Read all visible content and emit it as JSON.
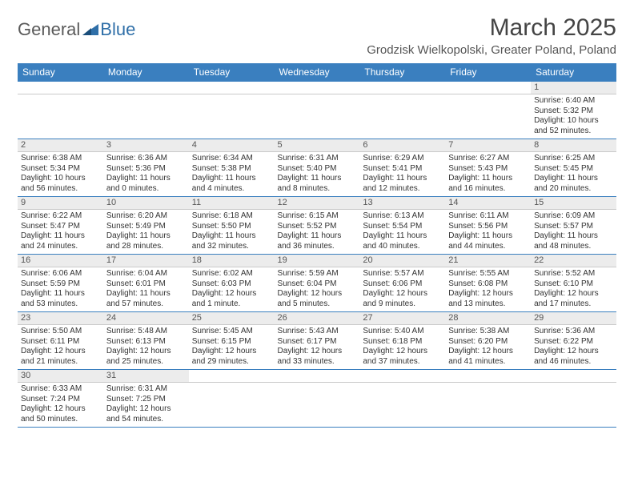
{
  "logo": {
    "text1": "General",
    "text2": "Blue"
  },
  "title": "March 2025",
  "subtitle": "Grodzisk Wielkopolski, Greater Poland, Poland",
  "colors": {
    "header_bg": "#3a7fbf",
    "header_text": "#ffffff",
    "daynum_bg": "#ececec",
    "rule": "#3a7fbf",
    "body_text": "#333333",
    "title_text": "#444444"
  },
  "weekdays": [
    "Sunday",
    "Monday",
    "Tuesday",
    "Wednesday",
    "Thursday",
    "Friday",
    "Saturday"
  ],
  "weeks": [
    [
      null,
      null,
      null,
      null,
      null,
      null,
      {
        "n": "1",
        "sr": "Sunrise: 6:40 AM",
        "ss": "Sunset: 5:32 PM",
        "d1": "Daylight: 10 hours",
        "d2": "and 52 minutes."
      }
    ],
    [
      {
        "n": "2",
        "sr": "Sunrise: 6:38 AM",
        "ss": "Sunset: 5:34 PM",
        "d1": "Daylight: 10 hours",
        "d2": "and 56 minutes."
      },
      {
        "n": "3",
        "sr": "Sunrise: 6:36 AM",
        "ss": "Sunset: 5:36 PM",
        "d1": "Daylight: 11 hours",
        "d2": "and 0 minutes."
      },
      {
        "n": "4",
        "sr": "Sunrise: 6:34 AM",
        "ss": "Sunset: 5:38 PM",
        "d1": "Daylight: 11 hours",
        "d2": "and 4 minutes."
      },
      {
        "n": "5",
        "sr": "Sunrise: 6:31 AM",
        "ss": "Sunset: 5:40 PM",
        "d1": "Daylight: 11 hours",
        "d2": "and 8 minutes."
      },
      {
        "n": "6",
        "sr": "Sunrise: 6:29 AM",
        "ss": "Sunset: 5:41 PM",
        "d1": "Daylight: 11 hours",
        "d2": "and 12 minutes."
      },
      {
        "n": "7",
        "sr": "Sunrise: 6:27 AM",
        "ss": "Sunset: 5:43 PM",
        "d1": "Daylight: 11 hours",
        "d2": "and 16 minutes."
      },
      {
        "n": "8",
        "sr": "Sunrise: 6:25 AM",
        "ss": "Sunset: 5:45 PM",
        "d1": "Daylight: 11 hours",
        "d2": "and 20 minutes."
      }
    ],
    [
      {
        "n": "9",
        "sr": "Sunrise: 6:22 AM",
        "ss": "Sunset: 5:47 PM",
        "d1": "Daylight: 11 hours",
        "d2": "and 24 minutes."
      },
      {
        "n": "10",
        "sr": "Sunrise: 6:20 AM",
        "ss": "Sunset: 5:49 PM",
        "d1": "Daylight: 11 hours",
        "d2": "and 28 minutes."
      },
      {
        "n": "11",
        "sr": "Sunrise: 6:18 AM",
        "ss": "Sunset: 5:50 PM",
        "d1": "Daylight: 11 hours",
        "d2": "and 32 minutes."
      },
      {
        "n": "12",
        "sr": "Sunrise: 6:15 AM",
        "ss": "Sunset: 5:52 PM",
        "d1": "Daylight: 11 hours",
        "d2": "and 36 minutes."
      },
      {
        "n": "13",
        "sr": "Sunrise: 6:13 AM",
        "ss": "Sunset: 5:54 PM",
        "d1": "Daylight: 11 hours",
        "d2": "and 40 minutes."
      },
      {
        "n": "14",
        "sr": "Sunrise: 6:11 AM",
        "ss": "Sunset: 5:56 PM",
        "d1": "Daylight: 11 hours",
        "d2": "and 44 minutes."
      },
      {
        "n": "15",
        "sr": "Sunrise: 6:09 AM",
        "ss": "Sunset: 5:57 PM",
        "d1": "Daylight: 11 hours",
        "d2": "and 48 minutes."
      }
    ],
    [
      {
        "n": "16",
        "sr": "Sunrise: 6:06 AM",
        "ss": "Sunset: 5:59 PM",
        "d1": "Daylight: 11 hours",
        "d2": "and 53 minutes."
      },
      {
        "n": "17",
        "sr": "Sunrise: 6:04 AM",
        "ss": "Sunset: 6:01 PM",
        "d1": "Daylight: 11 hours",
        "d2": "and 57 minutes."
      },
      {
        "n": "18",
        "sr": "Sunrise: 6:02 AM",
        "ss": "Sunset: 6:03 PM",
        "d1": "Daylight: 12 hours",
        "d2": "and 1 minute."
      },
      {
        "n": "19",
        "sr": "Sunrise: 5:59 AM",
        "ss": "Sunset: 6:04 PM",
        "d1": "Daylight: 12 hours",
        "d2": "and 5 minutes."
      },
      {
        "n": "20",
        "sr": "Sunrise: 5:57 AM",
        "ss": "Sunset: 6:06 PM",
        "d1": "Daylight: 12 hours",
        "d2": "and 9 minutes."
      },
      {
        "n": "21",
        "sr": "Sunrise: 5:55 AM",
        "ss": "Sunset: 6:08 PM",
        "d1": "Daylight: 12 hours",
        "d2": "and 13 minutes."
      },
      {
        "n": "22",
        "sr": "Sunrise: 5:52 AM",
        "ss": "Sunset: 6:10 PM",
        "d1": "Daylight: 12 hours",
        "d2": "and 17 minutes."
      }
    ],
    [
      {
        "n": "23",
        "sr": "Sunrise: 5:50 AM",
        "ss": "Sunset: 6:11 PM",
        "d1": "Daylight: 12 hours",
        "d2": "and 21 minutes."
      },
      {
        "n": "24",
        "sr": "Sunrise: 5:48 AM",
        "ss": "Sunset: 6:13 PM",
        "d1": "Daylight: 12 hours",
        "d2": "and 25 minutes."
      },
      {
        "n": "25",
        "sr": "Sunrise: 5:45 AM",
        "ss": "Sunset: 6:15 PM",
        "d1": "Daylight: 12 hours",
        "d2": "and 29 minutes."
      },
      {
        "n": "26",
        "sr": "Sunrise: 5:43 AM",
        "ss": "Sunset: 6:17 PM",
        "d1": "Daylight: 12 hours",
        "d2": "and 33 minutes."
      },
      {
        "n": "27",
        "sr": "Sunrise: 5:40 AM",
        "ss": "Sunset: 6:18 PM",
        "d1": "Daylight: 12 hours",
        "d2": "and 37 minutes."
      },
      {
        "n": "28",
        "sr": "Sunrise: 5:38 AM",
        "ss": "Sunset: 6:20 PM",
        "d1": "Daylight: 12 hours",
        "d2": "and 41 minutes."
      },
      {
        "n": "29",
        "sr": "Sunrise: 5:36 AM",
        "ss": "Sunset: 6:22 PM",
        "d1": "Daylight: 12 hours",
        "d2": "and 46 minutes."
      }
    ],
    [
      {
        "n": "30",
        "sr": "Sunrise: 6:33 AM",
        "ss": "Sunset: 7:24 PM",
        "d1": "Daylight: 12 hours",
        "d2": "and 50 minutes."
      },
      {
        "n": "31",
        "sr": "Sunrise: 6:31 AM",
        "ss": "Sunset: 7:25 PM",
        "d1": "Daylight: 12 hours",
        "d2": "and 54 minutes."
      },
      null,
      null,
      null,
      null,
      null
    ]
  ]
}
